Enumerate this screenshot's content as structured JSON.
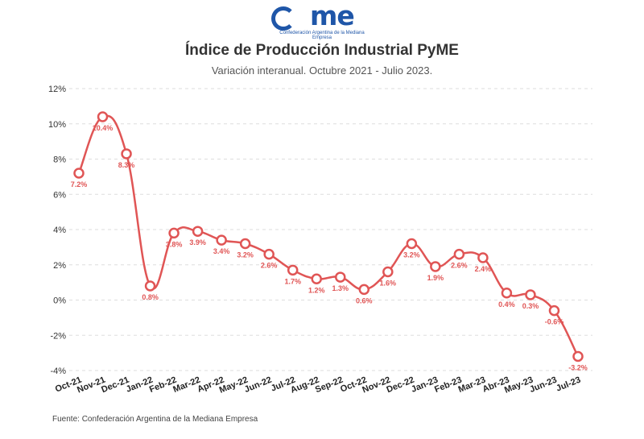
{
  "logo": {
    "word": "came",
    "caption": "Confederación Argentina de la Mediana Empresa"
  },
  "header": {
    "title": "Índice de Producción Industrial PyME",
    "subtitle": "Variación interanual. Octubre 2021 - Julio 2023."
  },
  "footer": {
    "source": "Fuente: Confederación Argentina de la Mediana Empresa"
  },
  "colors": {
    "line": "#e05555",
    "grid": "#dddddd",
    "brand": "#1f56a8"
  },
  "chart_data": {
    "type": "line",
    "title": "Índice de Producción Industrial PyME",
    "subtitle": "Variación interanual. Octubre 2021 - Julio 2023.",
    "xlabel": "",
    "ylabel": "",
    "ylim": [
      -4,
      12
    ],
    "y_ticks": [
      -4,
      -2,
      0,
      2,
      4,
      6,
      8,
      10,
      12
    ],
    "y_tick_labels": [
      "-4%",
      "-2%",
      "0%",
      "2%",
      "4%",
      "6%",
      "8%",
      "10%",
      "12%"
    ],
    "grid": "horizontal dashed",
    "categories": [
      "Oct-21",
      "Nov-21",
      "Dec-21",
      "Jan-22",
      "Feb-22",
      "Mar-22",
      "Apr-22",
      "May-22",
      "Jun-22",
      "Jul-22",
      "Aug-22",
      "Sep-22",
      "Oct-22",
      "Nov-22",
      "Dec-22",
      "Jan-23",
      "Feb-23",
      "Mar-23",
      "Abr-23",
      "May-23",
      "Jun-23",
      "Jul-23"
    ],
    "values": [
      7.2,
      10.4,
      8.3,
      0.8,
      3.8,
      3.9,
      3.4,
      3.2,
      2.6,
      1.7,
      1.2,
      1.3,
      0.6,
      1.6,
      3.2,
      1.9,
      2.6,
      2.4,
      0.4,
      0.3,
      -0.6,
      -3.2
    ],
    "data_labels": [
      "7.2%",
      "10.4%",
      "8.3%",
      "0.8%",
      "3.8%",
      "3.9%",
      "3.4%",
      "3.2%",
      "2.6%",
      "1.7%",
      "1.2%",
      "1.3%",
      "0.6%",
      "1.6%",
      "3.2%",
      "1.9%",
      "2.6%",
      "2.4%",
      "0.4%",
      "0.3%",
      "-0.6%",
      "-3.2%"
    ]
  }
}
